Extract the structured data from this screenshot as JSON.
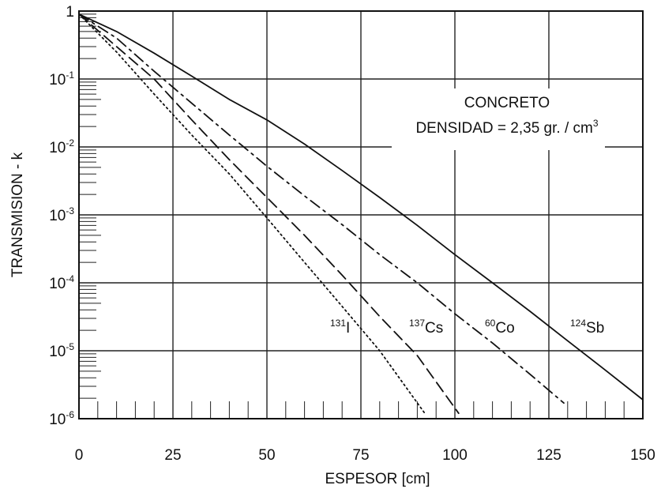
{
  "chart_data": {
    "type": "line",
    "xlabel": "ESPESOR [cm]",
    "ylabel": "TRANSMISION - k",
    "xlim": [
      0,
      150
    ],
    "ylim": [
      1e-06,
      1
    ],
    "yscale": "log",
    "grid": true,
    "x_ticks": [
      0,
      25,
      50,
      75,
      100,
      125,
      150
    ],
    "x_tick_labels": [
      "0",
      "25",
      "50",
      "75",
      "100",
      "125",
      "150"
    ],
    "y_ticks": [
      {
        "value": 1,
        "base": "1",
        "exp": ""
      },
      {
        "value": 0.1,
        "base": "10",
        "exp": "-1"
      },
      {
        "value": 0.01,
        "base": "10",
        "exp": "-2"
      },
      {
        "value": 0.001,
        "base": "10",
        "exp": "-3"
      },
      {
        "value": 0.0001,
        "base": "10",
        "exp": "-4"
      },
      {
        "value": 1e-05,
        "base": "10",
        "exp": "-5"
      },
      {
        "value": 1e-06,
        "base": "10",
        "exp": "-6"
      }
    ],
    "annotation": {
      "line1": "CONCRETO",
      "line2": "DENSIDAD = 2,35 gr. / cm",
      "line2_sup": "3"
    },
    "series": [
      {
        "name_sup": "124",
        "name_main": "Sb",
        "style": "solid",
        "x": [
          0,
          10,
          20,
          30,
          40,
          50,
          60,
          70,
          80,
          90,
          100,
          110,
          120,
          130,
          140,
          150
        ],
        "y": [
          0.9,
          0.5,
          0.24,
          0.11,
          0.05,
          0.025,
          0.011,
          0.0045,
          0.0018,
          0.0007,
          0.00026,
          0.0001,
          3.8e-05,
          1.4e-05,
          5.2e-06,
          1.9e-06
        ]
      },
      {
        "name_sup": "60",
        "name_main": "Co",
        "style": "dashdot",
        "x": [
          0,
          10,
          20,
          30,
          40,
          50,
          60,
          70,
          80,
          90,
          100,
          110,
          120,
          129
        ],
        "y": [
          0.9,
          0.4,
          0.13,
          0.044,
          0.015,
          0.0052,
          0.0019,
          0.00072,
          0.00026,
          0.0001,
          3.5e-05,
          1.3e-05,
          4.5e-06,
          1.7e-06
        ]
      },
      {
        "name_sup": "137",
        "name_main": "Cs",
        "style": "dashed",
        "x": [
          0,
          10,
          20,
          30,
          40,
          50,
          60,
          70,
          80,
          90,
          101
        ],
        "y": [
          0.9,
          0.3,
          0.1,
          0.025,
          0.0065,
          0.0018,
          0.0005,
          0.00013,
          3.2e-05,
          8.5e-06,
          1.2e-06
        ]
      },
      {
        "name_sup": "131",
        "name_main": "I",
        "style": "dotted",
        "x": [
          0,
          10,
          20,
          30,
          40,
          50,
          60,
          70,
          80,
          92
        ],
        "y": [
          0.9,
          0.25,
          0.06,
          0.015,
          0.004,
          0.0009,
          0.0002,
          4.5e-05,
          1e-05,
          1.2e-06
        ]
      }
    ]
  }
}
